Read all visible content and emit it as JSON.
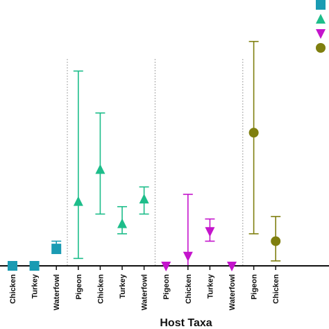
{
  "chart_data": {
    "type": "scatter",
    "xlabel": "Host Taxa",
    "categories": [
      "Chicken",
      "Turkey",
      "Waterfowl",
      "Pigeon",
      "Chicken",
      "Turkey",
      "Waterfowl",
      "Pigeon",
      "Chicken",
      "Turkey",
      "Waterfowl",
      "Pigeon",
      "Chicken"
    ],
    "ylim": [
      -0.5,
      10.5
    ],
    "grid": false,
    "legend": "top-right",
    "series": [
      {
        "marker": "square",
        "color": "#1a9bb3",
        "points": [
          {
            "category_index": 0,
            "y": 0.0,
            "low": null,
            "high": null
          },
          {
            "category_index": 1,
            "y": 0.0,
            "low": null,
            "high": null
          },
          {
            "category_index": 2,
            "y": 0.7,
            "low": 0.5,
            "high": 1.0
          }
        ]
      },
      {
        "marker": "triangle-up",
        "color": "#1dbd8a",
        "points": [
          {
            "category_index": 3,
            "y": 2.6,
            "low": 0.3,
            "high": 7.9
          },
          {
            "category_index": 4,
            "y": 3.9,
            "low": 2.1,
            "high": 6.2
          },
          {
            "category_index": 5,
            "y": 1.7,
            "low": 1.3,
            "high": 2.4
          },
          {
            "category_index": 6,
            "y": 2.7,
            "low": 2.1,
            "high": 3.2
          }
        ]
      },
      {
        "marker": "triangle-down",
        "color": "#c414cc",
        "points": [
          {
            "category_index": 7,
            "y": 0.0,
            "low": null,
            "high": null
          },
          {
            "category_index": 8,
            "y": 0.4,
            "low": 0.0,
            "high": 2.9
          },
          {
            "category_index": 9,
            "y": 1.4,
            "low": 1.0,
            "high": 1.9
          },
          {
            "category_index": 10,
            "y": 0.0,
            "low": null,
            "high": null
          }
        ]
      },
      {
        "marker": "circle",
        "color": "#7f7f0f",
        "points": [
          {
            "category_index": 11,
            "y": 5.4,
            "low": 1.3,
            "high": 9.1
          },
          {
            "category_index": 12,
            "y": 1.0,
            "low": 0.2,
            "high": 2.0
          }
        ]
      }
    ],
    "group_separators_after_index": [
      2,
      6,
      10
    ]
  }
}
